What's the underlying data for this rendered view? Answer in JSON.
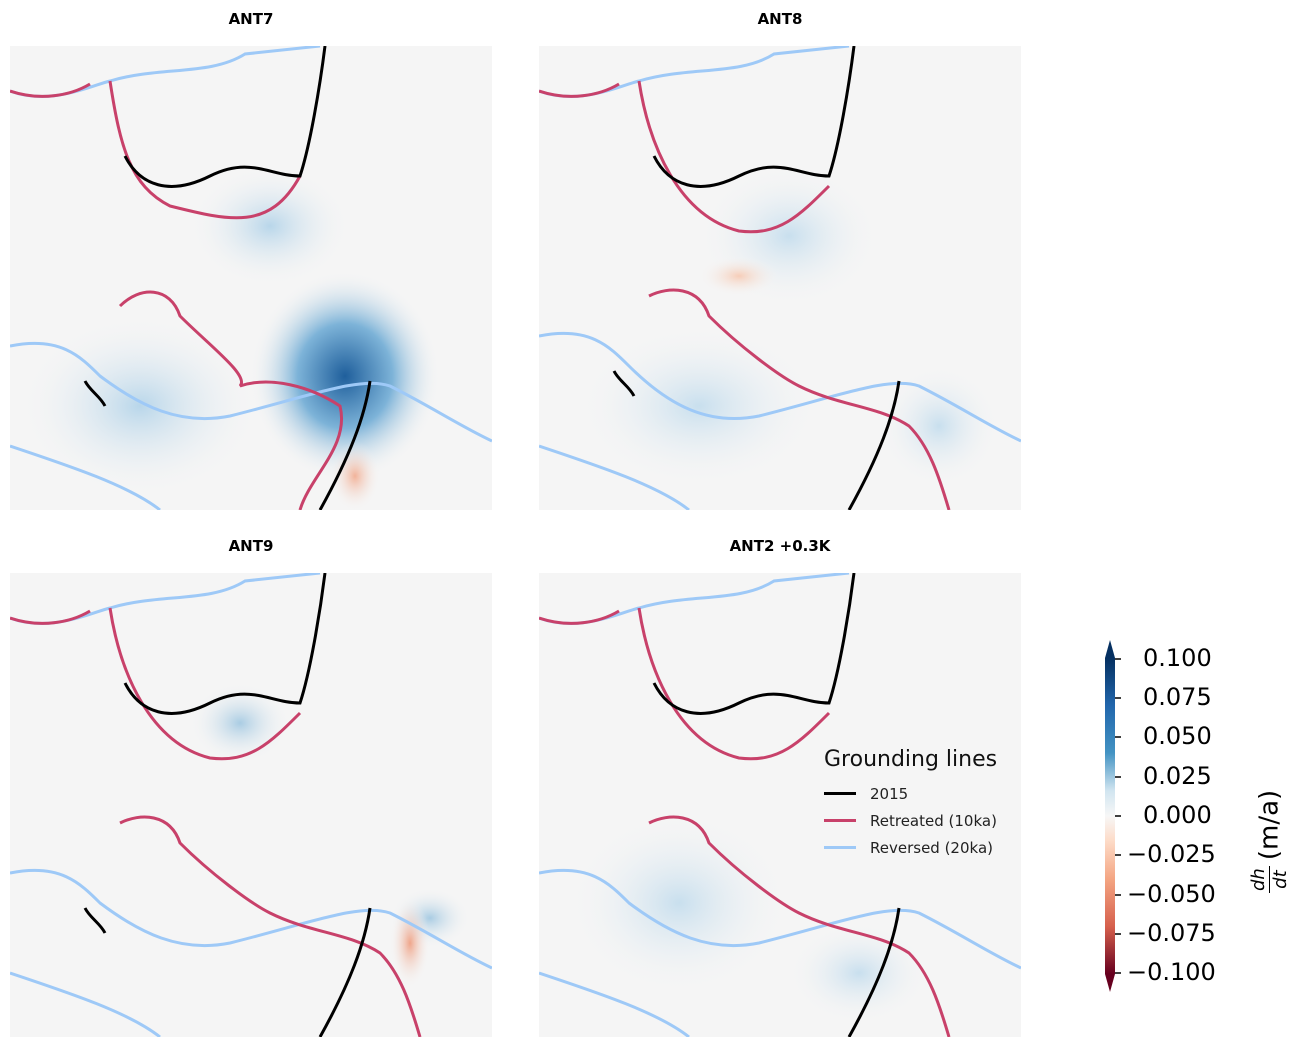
{
  "chart_data": [
    {
      "type": "heatmap",
      "title": "ANT7"
    },
    {
      "type": "heatmap",
      "title": "ANT8"
    },
    {
      "type": "heatmap",
      "title": "ANT9"
    },
    {
      "type": "heatmap",
      "title": "ANT2 +0.3K"
    }
  ],
  "legend": {
    "title": "Grounding lines",
    "items": [
      {
        "label": "2015",
        "color": "#000000"
      },
      {
        "label": "Retreated (10ka)",
        "color": "#c8416a"
      },
      {
        "label": "Reversed (20ka)",
        "color": "#9ec9f7"
      }
    ]
  },
  "colorbar": {
    "label": "(m/a)",
    "ticks": [
      "0.100",
      "0.075",
      "0.050",
      "0.025",
      "0.000",
      "−0.025",
      "−0.050",
      "−0.075",
      "−0.100"
    ],
    "range": [
      -0.1,
      0.1
    ],
    "colormap": "RdBu"
  }
}
